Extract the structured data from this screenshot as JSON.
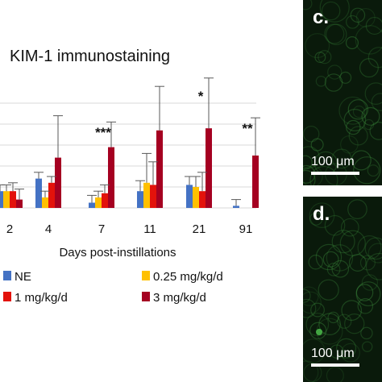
{
  "chart_data": {
    "type": "bar",
    "title": "KIM-1 immunostaining",
    "xlabel": "Days post-instillations",
    "ylabel": "",
    "categories": [
      "2",
      "4",
      "7",
      "11",
      "21",
      "91"
    ],
    "ylim": [
      0,
      5
    ],
    "grid": true,
    "legend_position": "bottom",
    "series": [
      {
        "name": "NE",
        "color": "#4472c4",
        "values": [
          0.8,
          1.4,
          0.25,
          0.8,
          1.1,
          0.1
        ],
        "errors": [
          0.3,
          0.3,
          0.35,
          0.5,
          0.4,
          0.3
        ]
      },
      {
        "name": "0.25 mg/kg/d",
        "color": "#ffc000",
        "values": [
          0.8,
          0.5,
          0.5,
          1.2,
          1.0,
          0.0
        ],
        "errors": [
          0.3,
          0.3,
          0.3,
          1.4,
          0.5,
          0.0
        ]
      },
      {
        "name": "1 mg/kg/d",
        "color": "#e3120b",
        "values": [
          0.8,
          1.2,
          0.7,
          1.1,
          0.8,
          0.0
        ],
        "errors": [
          0.4,
          0.3,
          0.4,
          1.1,
          0.9,
          0.0
        ]
      },
      {
        "name": "3 mg/kg/d",
        "color": "#a50021",
        "values": [
          0.4,
          2.4,
          2.9,
          3.7,
          3.8,
          2.5
        ],
        "errors": [
          0.5,
          2.0,
          1.2,
          2.1,
          2.4,
          1.8
        ]
      }
    ],
    "annotations": [
      {
        "category": "7",
        "text": "***"
      },
      {
        "category": "21",
        "text": "*"
      },
      {
        "category": "91",
        "text": "**"
      }
    ]
  },
  "panels": [
    {
      "letter": "c.",
      "scale": "100 μm"
    },
    {
      "letter": "d.",
      "scale": "100 μm"
    }
  ]
}
